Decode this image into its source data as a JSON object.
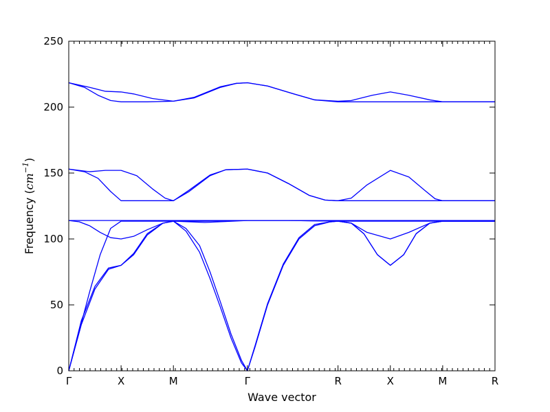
{
  "chart_data": {
    "type": "line",
    "xlabel": "Wave vector",
    "ylabel_prefix": "Frequency (",
    "ylabel_symbol": "cm",
    "ylabel_exponent": "−1",
    "ylabel_suffix": ")",
    "ylim": [
      0,
      250
    ],
    "yticks": [
      0,
      50,
      100,
      150,
      200,
      250
    ],
    "grid": false,
    "line_color": "#0000ff",
    "path_points": [
      "Γ",
      "X",
      "M",
      "Γ",
      "R",
      "X",
      "M",
      "R"
    ],
    "path_distances": [
      0,
      0.5,
      1.0,
      1.7071,
      2.5731,
      3.0731,
      3.5731,
      4.0731
    ],
    "series": [
      {
        "values": [
          [
            0,
            0
          ],
          [
            0.12,
            35
          ],
          [
            0.25,
            62
          ],
          [
            0.38,
            77
          ],
          [
            0.5,
            80
          ],
          [
            0.62,
            88
          ],
          [
            0.75,
            103
          ],
          [
            0.9,
            112
          ],
          [
            1.0,
            113.5
          ],
          [
            1.12,
            108
          ],
          [
            1.25,
            95
          ],
          [
            1.35,
            75
          ],
          [
            1.45,
            52
          ],
          [
            1.55,
            28
          ],
          [
            1.65,
            8
          ],
          [
            1.7071,
            0
          ],
          [
            1.78,
            18
          ],
          [
            1.9,
            50
          ],
          [
            2.05,
            80
          ],
          [
            2.2,
            100
          ],
          [
            2.35,
            110
          ],
          [
            2.5,
            113
          ],
          [
            2.5731,
            113.5
          ],
          [
            2.7,
            112
          ],
          [
            2.82,
            104
          ],
          [
            2.95,
            88
          ],
          [
            3.0731,
            80
          ],
          [
            3.2,
            88
          ],
          [
            3.32,
            104
          ],
          [
            3.45,
            112
          ],
          [
            3.5731,
            113.5
          ],
          [
            4.0731,
            113.5
          ]
        ]
      },
      {
        "values": [
          [
            0,
            0
          ],
          [
            0.12,
            38
          ],
          [
            0.25,
            64
          ],
          [
            0.38,
            78
          ],
          [
            0.5,
            80
          ],
          [
            0.62,
            89
          ],
          [
            0.75,
            104
          ],
          [
            0.9,
            112
          ],
          [
            1.0,
            113.5
          ],
          [
            1.12,
            106
          ],
          [
            1.25,
            90
          ],
          [
            1.35,
            70
          ],
          [
            1.45,
            48
          ],
          [
            1.55,
            25
          ],
          [
            1.65,
            6
          ],
          [
            1.7071,
            0
          ],
          [
            1.78,
            19
          ],
          [
            1.9,
            51
          ],
          [
            2.05,
            81
          ],
          [
            2.2,
            101
          ],
          [
            2.35,
            111
          ],
          [
            2.5,
            113
          ],
          [
            2.5731,
            113.5
          ],
          [
            2.7,
            112
          ],
          [
            2.82,
            104
          ],
          [
            2.95,
            88
          ],
          [
            3.0731,
            80
          ],
          [
            3.2,
            88
          ],
          [
            3.32,
            104
          ],
          [
            3.45,
            112
          ],
          [
            3.5731,
            113.5
          ],
          [
            4.0731,
            113.5
          ]
        ]
      },
      {
        "values": [
          [
            0,
            0
          ],
          [
            0.1,
            30
          ],
          [
            0.2,
            60
          ],
          [
            0.3,
            88
          ],
          [
            0.4,
            108
          ],
          [
            0.5,
            113.5
          ],
          [
            0.75,
            113.5
          ],
          [
            1.0,
            113.5
          ],
          [
            1.3,
            113.5
          ],
          [
            1.7071,
            114
          ],
          [
            2.1,
            114
          ],
          [
            2.5731,
            113.5
          ],
          [
            2.7,
            112
          ],
          [
            2.85,
            105
          ],
          [
            3.0731,
            100
          ],
          [
            3.25,
            105
          ],
          [
            3.45,
            112
          ],
          [
            3.5731,
            113.5
          ],
          [
            4.0731,
            113.5
          ]
        ]
      },
      {
        "values": [
          [
            0,
            114
          ],
          [
            0.1,
            113
          ],
          [
            0.2,
            110
          ],
          [
            0.3,
            105
          ],
          [
            0.4,
            101
          ],
          [
            0.5,
            100
          ],
          [
            0.62,
            102
          ],
          [
            0.75,
            107
          ],
          [
            0.9,
            112
          ],
          [
            1.0,
            113.5
          ],
          [
            1.3,
            112.5
          ],
          [
            1.7071,
            114
          ],
          [
            2.1,
            114
          ],
          [
            2.5731,
            113.5
          ],
          [
            4.0731,
            113.5
          ]
        ]
      },
      {
        "values": [
          [
            0,
            114
          ],
          [
            1.0,
            114
          ],
          [
            1.7071,
            114
          ],
          [
            2.5731,
            114
          ],
          [
            4.0731,
            114
          ]
        ]
      },
      {
        "values": [
          [
            0,
            153
          ],
          [
            0.2,
            151
          ],
          [
            0.35,
            152
          ],
          [
            0.5,
            152
          ],
          [
            0.65,
            148
          ],
          [
            0.8,
            138
          ],
          [
            0.92,
            131
          ],
          [
            1.0,
            129
          ],
          [
            1.15,
            136
          ],
          [
            1.35,
            148
          ],
          [
            1.5,
            152.5
          ],
          [
            1.7071,
            153
          ],
          [
            1.9,
            150
          ],
          [
            2.1,
            142
          ],
          [
            2.3,
            133
          ],
          [
            2.45,
            129.5
          ],
          [
            2.5731,
            129
          ],
          [
            2.7,
            131
          ],
          [
            2.85,
            141
          ],
          [
            3.0731,
            152
          ],
          [
            3.25,
            147
          ],
          [
            3.4,
            137
          ],
          [
            3.5,
            130.5
          ],
          [
            3.5731,
            129
          ],
          [
            4.0731,
            129
          ]
        ]
      },
      {
        "values": [
          [
            0,
            153
          ],
          [
            0.15,
            151
          ],
          [
            0.28,
            146
          ],
          [
            0.4,
            136
          ],
          [
            0.5,
            129
          ],
          [
            0.75,
            129
          ],
          [
            1.0,
            129
          ],
          [
            1.15,
            137
          ],
          [
            1.35,
            148.5
          ],
          [
            1.5,
            152.5
          ],
          [
            1.7071,
            153
          ],
          [
            1.9,
            150
          ],
          [
            2.1,
            142
          ],
          [
            2.3,
            133
          ],
          [
            2.45,
            129.5
          ],
          [
            2.5731,
            129
          ],
          [
            3.0731,
            129
          ],
          [
            3.5731,
            129
          ],
          [
            4.0731,
            129
          ]
        ]
      },
      {
        "values": [
          [
            0,
            218.5
          ],
          [
            0.2,
            215
          ],
          [
            0.35,
            212
          ],
          [
            0.5,
            211.5
          ],
          [
            0.62,
            210
          ],
          [
            0.8,
            206.5
          ],
          [
            1.0,
            204.5
          ],
          [
            1.2,
            207
          ],
          [
            1.45,
            215
          ],
          [
            1.6,
            218
          ],
          [
            1.7071,
            218.5
          ],
          [
            1.9,
            216
          ],
          [
            2.15,
            210
          ],
          [
            2.35,
            205.5
          ],
          [
            2.5731,
            204.5
          ],
          [
            2.7,
            205
          ],
          [
            2.9,
            209
          ],
          [
            3.0731,
            211.5
          ],
          [
            3.25,
            209
          ],
          [
            3.45,
            205.5
          ],
          [
            3.5731,
            204
          ],
          [
            4.0731,
            204
          ]
        ]
      },
      {
        "values": [
          [
            0,
            218.5
          ],
          [
            0.15,
            215
          ],
          [
            0.28,
            209
          ],
          [
            0.4,
            205
          ],
          [
            0.5,
            204
          ],
          [
            0.75,
            204
          ],
          [
            1.0,
            204.5
          ],
          [
            1.2,
            207.5
          ],
          [
            1.45,
            215.5
          ],
          [
            1.6,
            218
          ],
          [
            1.7071,
            218.5
          ],
          [
            1.9,
            216
          ],
          [
            2.15,
            210
          ],
          [
            2.35,
            205.5
          ],
          [
            2.5731,
            204
          ],
          [
            3.0731,
            204
          ],
          [
            3.5731,
            204
          ],
          [
            4.0731,
            204
          ]
        ]
      }
    ]
  }
}
